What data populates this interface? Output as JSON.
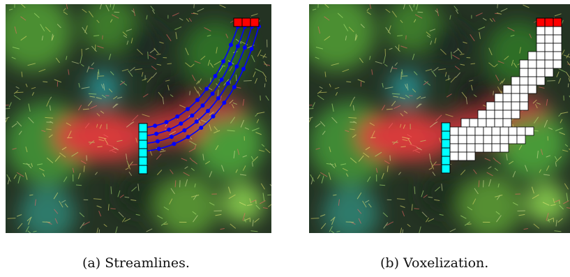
{
  "figure": {
    "panels": [
      {
        "id": "a",
        "caption": "(a) Streamlines.",
        "overlay": "streamlines"
      },
      {
        "id": "b",
        "caption": "(b) Voxelization.",
        "overlay": "voxel-grid"
      }
    ],
    "colors": {
      "seed_region": "#00ffff",
      "target_region": "#ff0000",
      "streamline": "#0000ff",
      "voxel_fill": "#ffffff",
      "tract_red": "#d83a3a",
      "background_green": "#3d8a2e",
      "background_dark": "#1f2a1c"
    },
    "streamline_count": 4,
    "seed_voxel_count": 6,
    "target_voxel_count": 3
  }
}
